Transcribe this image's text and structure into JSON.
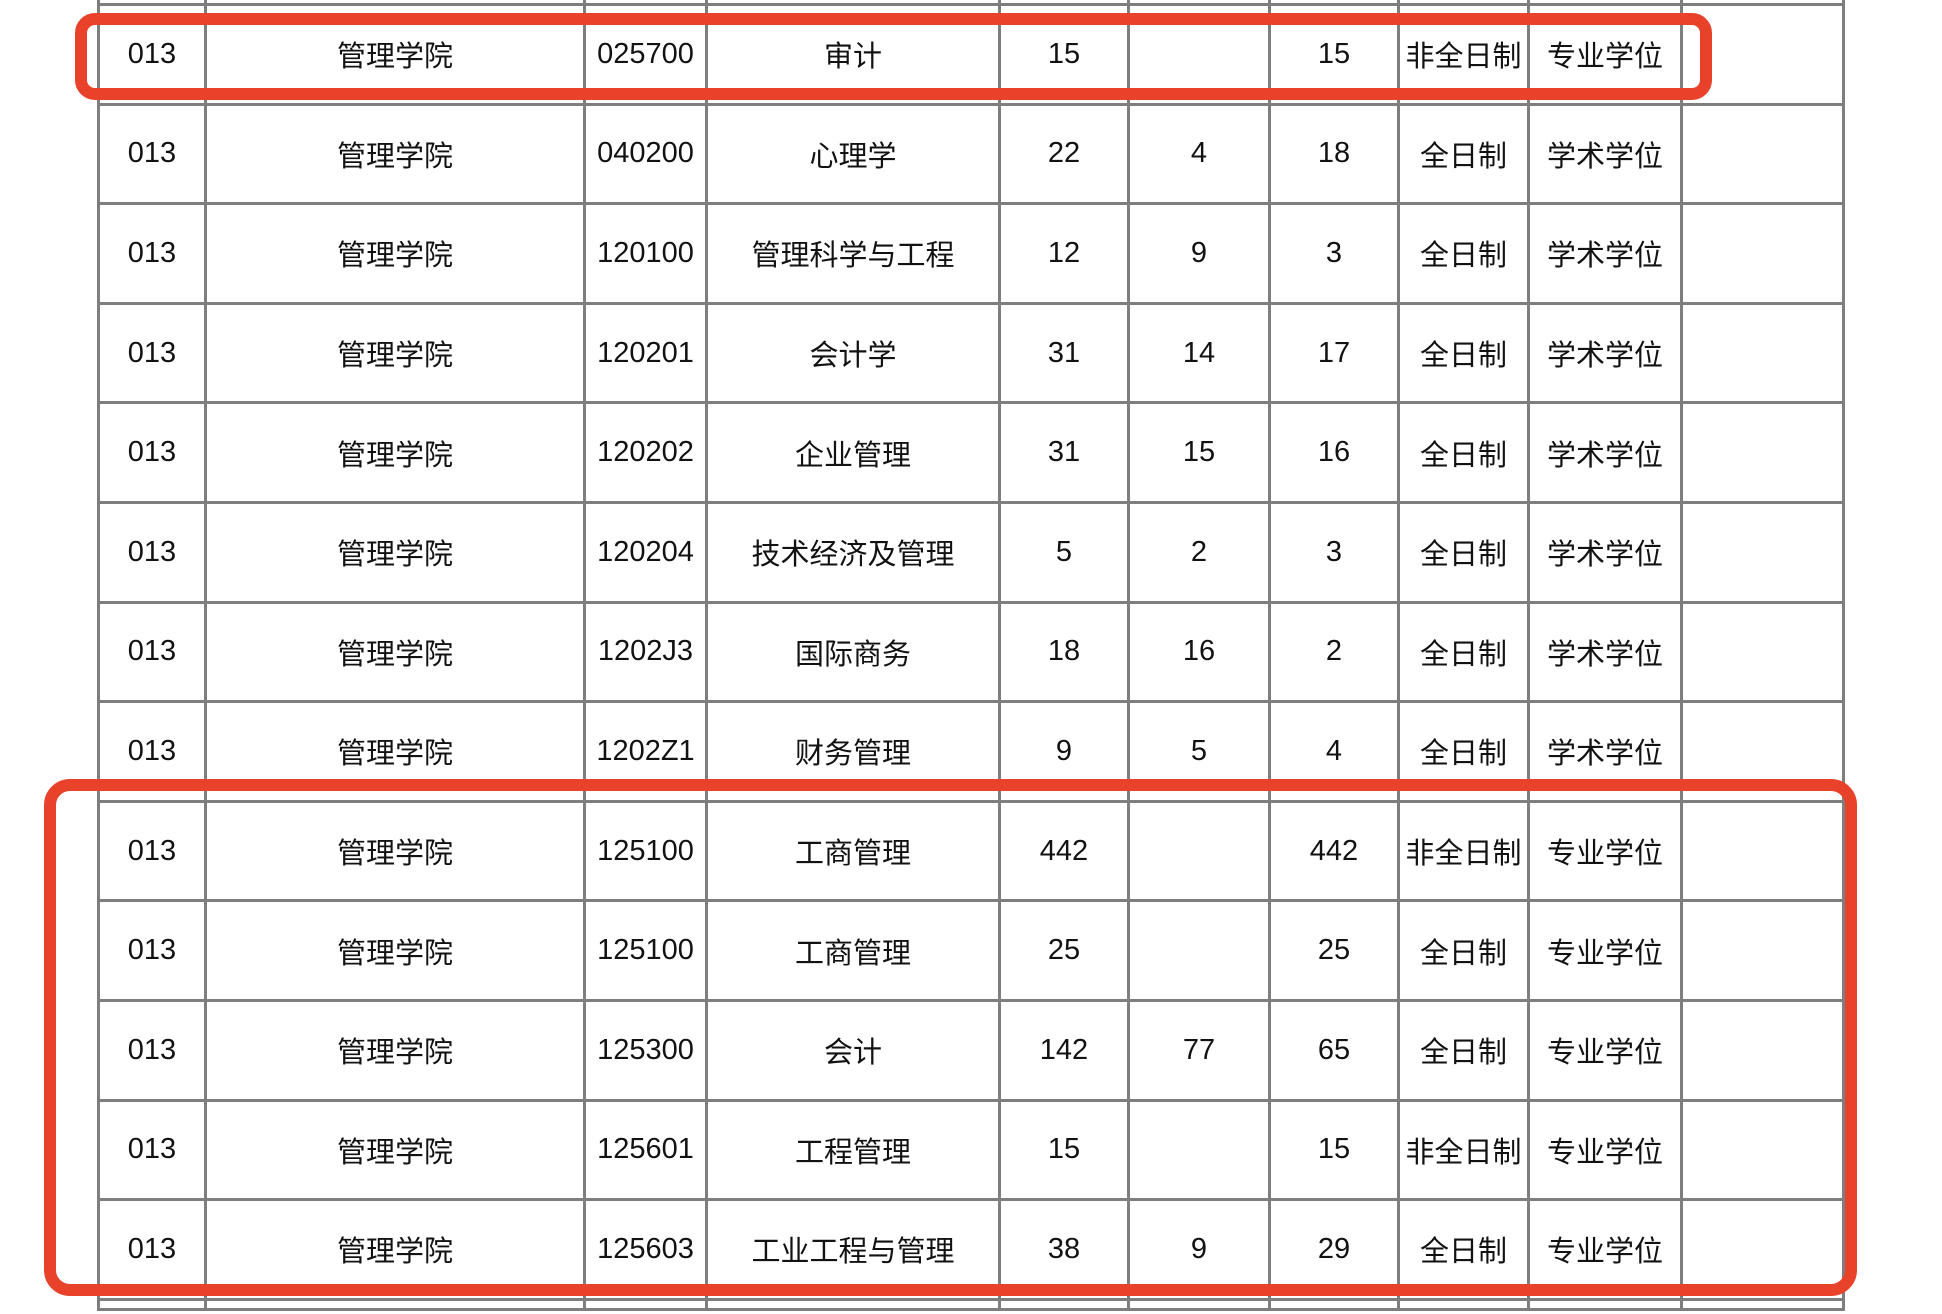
{
  "table": {
    "rows": [
      [
        "013",
        "管理学院",
        "025700",
        "审计",
        "15",
        "",
        "15",
        "非全日制",
        "专业学位",
        ""
      ],
      [
        "013",
        "管理学院",
        "040200",
        "心理学",
        "22",
        "4",
        "18",
        "全日制",
        "学术学位",
        ""
      ],
      [
        "013",
        "管理学院",
        "120100",
        "管理科学与工程",
        "12",
        "9",
        "3",
        "全日制",
        "学术学位",
        ""
      ],
      [
        "013",
        "管理学院",
        "120201",
        "会计学",
        "31",
        "14",
        "17",
        "全日制",
        "学术学位",
        ""
      ],
      [
        "013",
        "管理学院",
        "120202",
        "企业管理",
        "31",
        "15",
        "16",
        "全日制",
        "学术学位",
        ""
      ],
      [
        "013",
        "管理学院",
        "120204",
        "技术经济及管理",
        "5",
        "2",
        "3",
        "全日制",
        "学术学位",
        ""
      ],
      [
        "013",
        "管理学院",
        "1202J3",
        "国际商务",
        "18",
        "16",
        "2",
        "全日制",
        "学术学位",
        ""
      ],
      [
        "013",
        "管理学院",
        "1202Z1",
        "财务管理",
        "9",
        "5",
        "4",
        "全日制",
        "学术学位",
        ""
      ],
      [
        "013",
        "管理学院",
        "125100",
        "工商管理",
        "442",
        "",
        "442",
        "非全日制",
        "专业学位",
        ""
      ],
      [
        "013",
        "管理学院",
        "125100",
        "工商管理",
        "25",
        "",
        "25",
        "全日制",
        "专业学位",
        ""
      ],
      [
        "013",
        "管理学院",
        "125300",
        "会计",
        "142",
        "77",
        "65",
        "全日制",
        "专业学位",
        ""
      ],
      [
        "013",
        "管理学院",
        "125601",
        "工程管理",
        "15",
        "",
        "15",
        "非全日制",
        "专业学位",
        ""
      ],
      [
        "013",
        "管理学院",
        "125603",
        "工业工程与管理",
        "38",
        "9",
        "29",
        "全日制",
        "专业学位",
        ""
      ]
    ]
  },
  "annotations": {
    "highlight_color": "#e8432a",
    "highlighted_row_numbers_box1": [
      1
    ],
    "highlighted_row_numbers_box2": [
      9,
      10,
      11,
      12,
      13
    ]
  }
}
